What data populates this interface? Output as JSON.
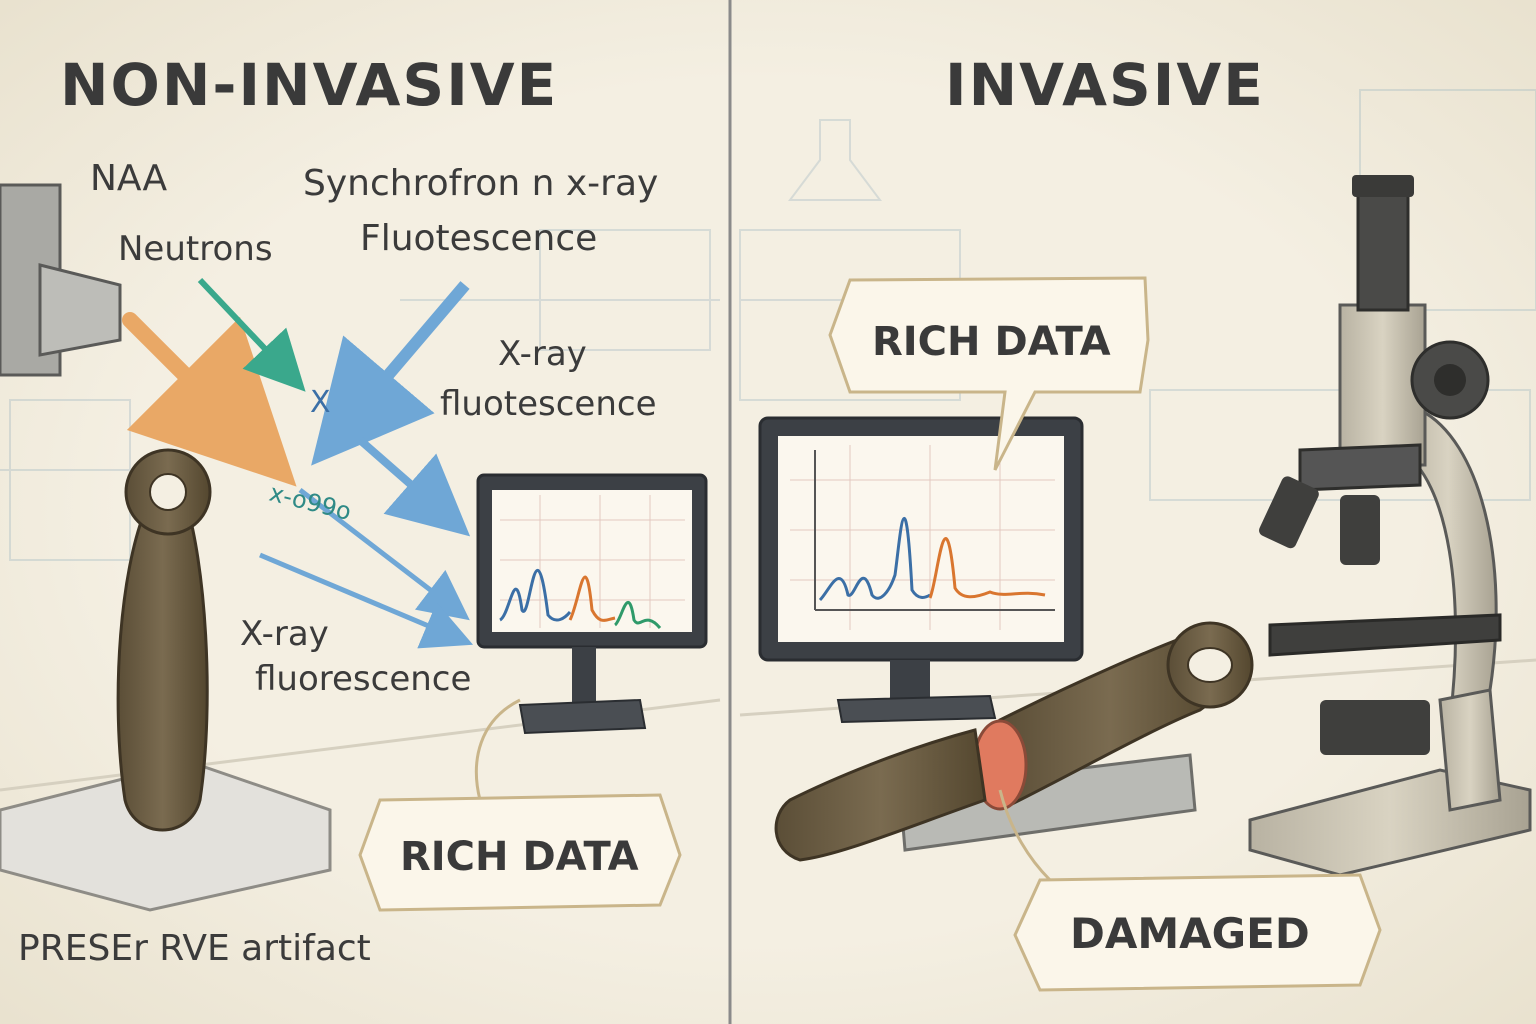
{
  "left": {
    "title": "NON-INVASIVE",
    "labels": {
      "naa": "NAA",
      "neutrons": "Neutrons",
      "synchrotron_line1": "Synchrofron n x-ray",
      "synchrotron_line2": "Fluotescence",
      "xray_right_line1": "X-ray",
      "xray_right_line2": "fluotescence",
      "xray_left_line1": "X-ray",
      "xray_left_line2": "fluorescence",
      "beam_mark_x": "X",
      "beam_mark_code": "x-o99o",
      "preserve": "PRESEr RVE artifact"
    },
    "callout": "RICH DATA"
  },
  "right": {
    "title": "INVASIVE",
    "callout_top": "RICH DATA",
    "callout_bottom": "DAMAGED"
  },
  "colors": {
    "background": "#f4efe2",
    "divider": "#8a8a8a",
    "arrow_orange": "#e9a866",
    "arrow_teal": "#3aa88c",
    "arrow_blue": "#6fa7d6",
    "spectrum_blue": "#3b6fa6",
    "spectrum_orange": "#d9762f",
    "spectrum_green": "#2f9a6a",
    "artifact": "#6e5f45",
    "cut_face": "#e07a5f"
  }
}
